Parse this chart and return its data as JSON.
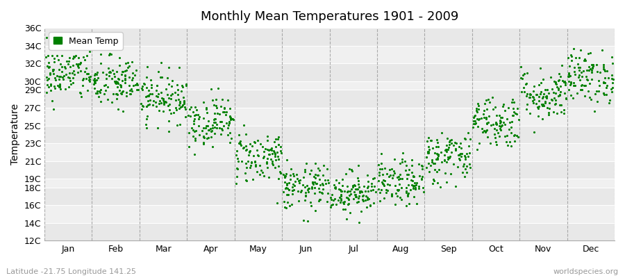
{
  "title": "Monthly Mean Temperatures 1901 - 2009",
  "ylabel": "Temperature",
  "subtitle_left": "Latitude -21.75 Longitude 141.25",
  "subtitle_right": "worldspecies.org",
  "ytick_labels": [
    "12C",
    "14C",
    "16C",
    "18C",
    "19C",
    "21C",
    "23C",
    "25C",
    "27C",
    "29C",
    "30C",
    "32C",
    "34C",
    "36C"
  ],
  "ytick_values": [
    12,
    14,
    16,
    18,
    19,
    21,
    23,
    25,
    27,
    29,
    30,
    32,
    34,
    36
  ],
  "ylim": [
    12,
    36
  ],
  "months": [
    "Jan",
    "Feb",
    "Mar",
    "Apr",
    "May",
    "Jun",
    "Jul",
    "Aug",
    "Sep",
    "Oct",
    "Nov",
    "Dec"
  ],
  "dot_color": "#008000",
  "dot_size": 5,
  "background_color": "#ffffff",
  "plot_bg_color": "#e8e8e8",
  "dashed_line_color": "#999999",
  "legend_label": "Mean Temp",
  "n_years": 109,
  "monthly_means": [
    30.8,
    29.8,
    28.2,
    25.5,
    21.5,
    18.0,
    17.5,
    18.5,
    21.5,
    25.5,
    28.5,
    30.5
  ],
  "monthly_stds": [
    1.5,
    1.5,
    1.4,
    1.4,
    1.5,
    1.3,
    1.2,
    1.3,
    1.5,
    1.5,
    1.5,
    1.5
  ],
  "seed": 42,
  "band_colors": [
    "#e8e8e8",
    "#f0f0f0"
  ]
}
